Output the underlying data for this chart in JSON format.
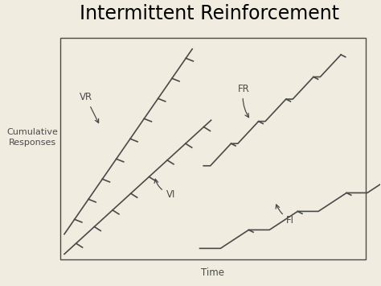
{
  "title": "Intermittent Reinforcement",
  "ylabel": "Cumulative\nResponses",
  "xlabel": "Time",
  "bg_color": "#f0ede0",
  "line_color": "#4a4a4a",
  "title_fontsize": 17,
  "label_fontsize": 8.5
}
